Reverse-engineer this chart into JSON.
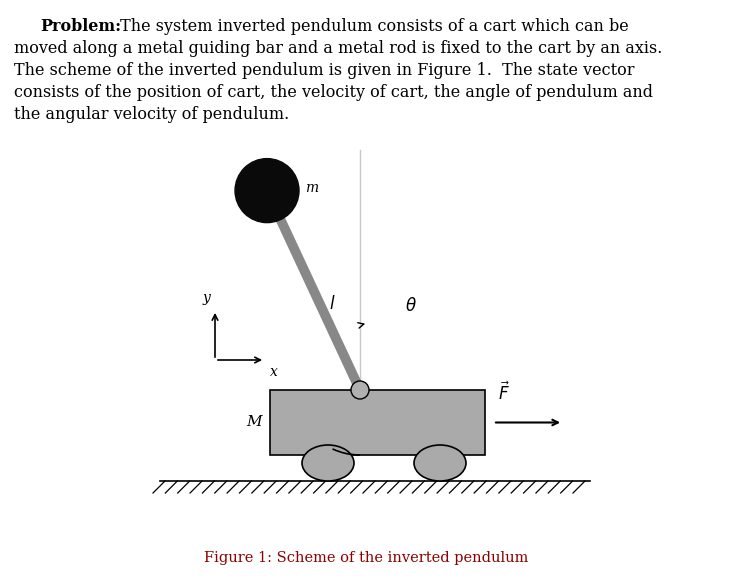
{
  "background_color": "#ffffff",
  "fig_width": 7.33,
  "fig_height": 5.83,
  "figure_caption": "Figure 1: Scheme of the inverted pendulum",
  "cart_color": "#aaaaaa",
  "wheel_color": "#aaaaaa",
  "rod_color": "#888888",
  "bob_color": "#0a0a0a",
  "axis_color": "#000000",
  "label_color_fig": "#8b0000",
  "text_color": "#000000",
  "text_lines": [
    "moved along a metal guiding bar and a metal rod is fixed to the cart by an axis.",
    "The scheme of the inverted pendulum is given in Figure 1.  The state vector",
    "consists of the position of cart, the velocity of cart, the angle of pendulum and",
    "the angular velocity of pendulum."
  ],
  "text_line1_bold": "Problem:",
  "text_line1_rest": " The system inverted pendulum consists of a cart which can be"
}
